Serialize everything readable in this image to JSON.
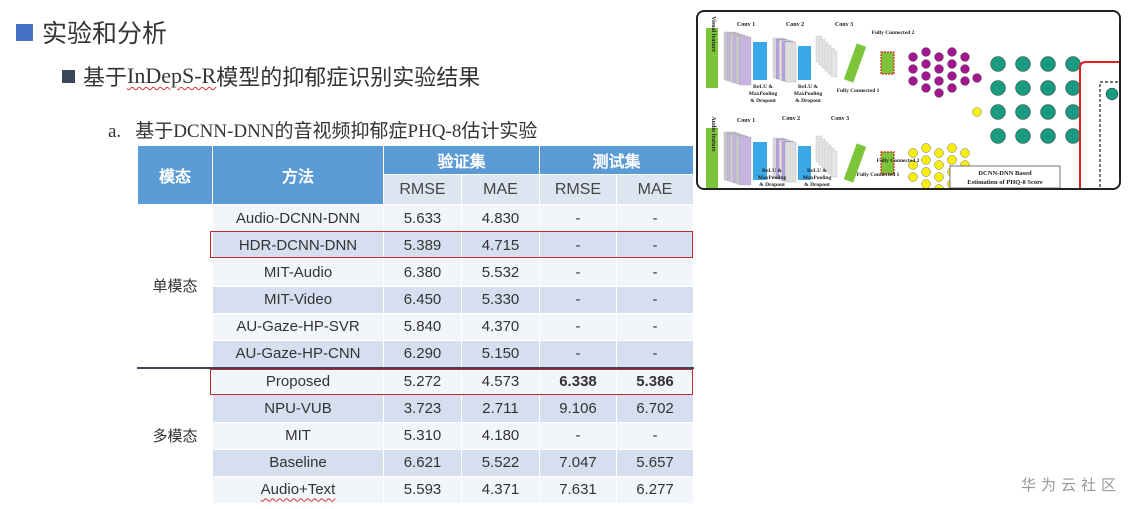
{
  "headings": {
    "h1": "实验和分析",
    "h2_prefix": "基于",
    "h2_model": "InDepS-R",
    "h2_suffix": "模型的抑郁症识别实验结果",
    "h3_label": "a.",
    "h3": "基于DCNN-DNN的音视频抑郁症PHQ-8估计实验"
  },
  "table": {
    "headers": {
      "modality": "模态",
      "method": "方法",
      "val": "验证集",
      "test": "测试集",
      "rmse": "RMSE",
      "mae": "MAE"
    },
    "groups": [
      {
        "label": "单模态",
        "rows": [
          {
            "method": "Audio-DCNN-DNN",
            "val_rmse": "5.633",
            "val_mae": "4.830",
            "test_rmse": "-",
            "test_mae": "-"
          },
          {
            "method": "HDR-DCNN-DNN",
            "val_rmse": "5.389",
            "val_mae": "4.715",
            "test_rmse": "-",
            "test_mae": "-",
            "highlighted": true
          },
          {
            "method": "MIT-Audio",
            "val_rmse": "6.380",
            "val_mae": "5.532",
            "test_rmse": "-",
            "test_mae": "-"
          },
          {
            "method": "MIT-Video",
            "val_rmse": "6.450",
            "val_mae": "5.330",
            "test_rmse": "-",
            "test_mae": "-"
          },
          {
            "method": "AU-Gaze-HP-SVR",
            "val_rmse": "5.840",
            "val_mae": "4.370",
            "test_rmse": "-",
            "test_mae": "-"
          },
          {
            "method": "AU-Gaze-HP-CNN",
            "val_rmse": "6.290",
            "val_mae": "5.150",
            "test_rmse": "-",
            "test_mae": "-"
          }
        ]
      },
      {
        "label": "多模态",
        "rows": [
          {
            "method": "Proposed",
            "val_rmse": "5.272",
            "val_mae": "4.573",
            "test_rmse": "6.338",
            "test_mae": "5.386",
            "highlighted": true,
            "bold_test": true
          },
          {
            "method": "NPU-VUB",
            "val_rmse": "3.723",
            "val_mae": "2.711",
            "test_rmse": "9.106",
            "test_mae": "6.702"
          },
          {
            "method": "MIT",
            "val_rmse": "5.310",
            "val_mae": "4.180",
            "test_rmse": "-",
            "test_mae": "-"
          },
          {
            "method": "Baseline",
            "val_rmse": "6.621",
            "val_mae": "5.522",
            "test_rmse": "7.047",
            "test_mae": "5.657"
          },
          {
            "method": "Audio+Text",
            "val_rmse": "5.593",
            "val_mae": "4.371",
            "test_rmse": "7.631",
            "test_mae": "6.277"
          }
        ]
      }
    ]
  },
  "diagram": {
    "visual_feature": "Visual feature",
    "audio_feature": "Audio feature",
    "conv1": "Conv 1",
    "conv2": "Conv 2",
    "conv3": "Conv 3",
    "relu": "ReLU &",
    "maxpool": "MaxPooling",
    "dropout": "& Dropout",
    "fc1": "Fully Connected 1",
    "fc2": "Fully Connected 2",
    "caption_1": "DCNN-DNN Based",
    "caption_2": "Estimation of PHQ-8 Score",
    "colors": {
      "teal": "#1a9a7f",
      "purple": "#a0178f",
      "yellow": "#f5ee10",
      "green": "#7cc43a",
      "blue": "#3aa7e6",
      "red": "#e02020"
    }
  },
  "watermark": "华为云社区",
  "colors": {
    "header_blue": "#5b9bd5",
    "subheader": "#dce6f1",
    "row_alt": "#d5dff0",
    "highlight_red": "#c0282d",
    "bullet_blue": "#4472c4"
  }
}
